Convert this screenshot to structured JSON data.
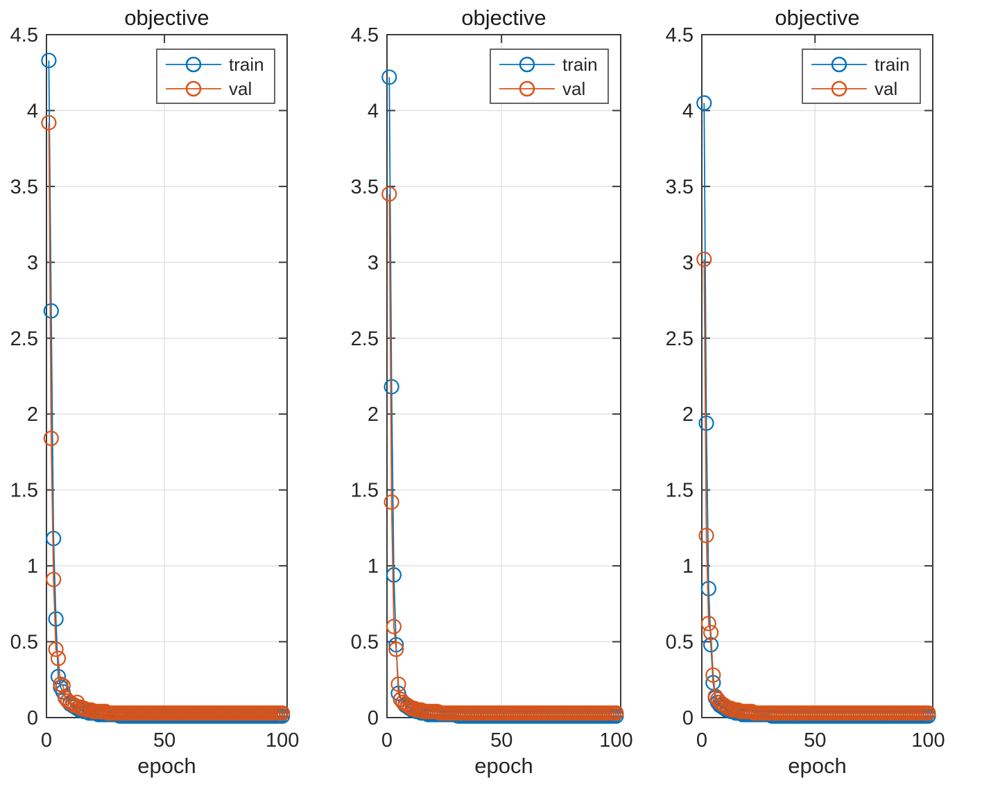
{
  "figure": {
    "background": "#ffffff",
    "subplot_count": 3
  },
  "style": {
    "axis_color": "#3a3a3a",
    "grid_color": "#e2e2e2",
    "tick_label_color": "#262626",
    "title_color": "#1a1a1a",
    "legend_border_color": "#3f3f3f",
    "legend_background": "#ffffff",
    "train_color": "#0072BD",
    "val_color": "#D95319"
  },
  "chart_data": [
    {
      "type": "line",
      "title": "objective",
      "xlabel": "epoch",
      "ylabel": "",
      "xlim": [
        0,
        102
      ],
      "ylim": [
        0,
        4.5
      ],
      "x_ticks": [
        0,
        50,
        100
      ],
      "y_ticks": [
        0,
        0.5,
        1,
        1.5,
        2,
        2.5,
        3,
        3.5,
        4,
        4.5
      ],
      "grid": true,
      "legend": {
        "position": "northeast",
        "entries": [
          "train",
          "val"
        ]
      },
      "x_start": 1,
      "series": [
        {
          "name": "train",
          "color": "#0072BD",
          "values": [
            4.33,
            2.68,
            1.18,
            0.65,
            0.27,
            0.2,
            0.17,
            0.13,
            0.11,
            0.09,
            0.08,
            0.07,
            0.06,
            0.05,
            0.05,
            0.04,
            0.04,
            0.03,
            0.03,
            0.03,
            0.03,
            0.02,
            0.02,
            0.02,
            0.02,
            0.02,
            0.02,
            0.02,
            0.02,
            0.02,
            0.01,
            0.01,
            0.01,
            0.01,
            0.01,
            0.01,
            0.01,
            0.01,
            0.01,
            0.01,
            0.01,
            0.01,
            0.01,
            0.01,
            0.01,
            0.01,
            0.01,
            0.01,
            0.01,
            0.01,
            0.01,
            0.01,
            0.01,
            0.01,
            0.01,
            0.01,
            0.01,
            0.01,
            0.01,
            0.01,
            0.01,
            0.01,
            0.01,
            0.01,
            0.01,
            0.01,
            0.01,
            0.01,
            0.01,
            0.01,
            0.01,
            0.01,
            0.01,
            0.01,
            0.01,
            0.01,
            0.01,
            0.01,
            0.01,
            0.01,
            0.01,
            0.01,
            0.01,
            0.01,
            0.01,
            0.01,
            0.01,
            0.01,
            0.01,
            0.01,
            0.01,
            0.01,
            0.01,
            0.01,
            0.01,
            0.01,
            0.01,
            0.01,
            0.01,
            0.01
          ]
        },
        {
          "name": "val",
          "color": "#D95319",
          "values": [
            3.92,
            1.84,
            0.91,
            0.45,
            0.39,
            0.22,
            0.21,
            0.13,
            0.11,
            0.1,
            0.09,
            0.08,
            0.1,
            0.07,
            0.06,
            0.06,
            0.05,
            0.05,
            0.05,
            0.04,
            0.04,
            0.04,
            0.04,
            0.04,
            0.04,
            0.03,
            0.03,
            0.03,
            0.03,
            0.03,
            0.03,
            0.03,
            0.03,
            0.03,
            0.03,
            0.03,
            0.03,
            0.03,
            0.03,
            0.03,
            0.03,
            0.03,
            0.03,
            0.03,
            0.03,
            0.03,
            0.03,
            0.03,
            0.03,
            0.03,
            0.03,
            0.03,
            0.03,
            0.03,
            0.03,
            0.03,
            0.03,
            0.03,
            0.03,
            0.03,
            0.03,
            0.03,
            0.03,
            0.03,
            0.03,
            0.03,
            0.03,
            0.03,
            0.03,
            0.03,
            0.03,
            0.03,
            0.03,
            0.03,
            0.03,
            0.03,
            0.03,
            0.03,
            0.03,
            0.03,
            0.03,
            0.03,
            0.03,
            0.03,
            0.03,
            0.03,
            0.03,
            0.03,
            0.03,
            0.03,
            0.03,
            0.03,
            0.03,
            0.03,
            0.03,
            0.03,
            0.03,
            0.03,
            0.03,
            0.03
          ]
        }
      ]
    },
    {
      "type": "line",
      "title": "objective",
      "xlabel": "epoch",
      "ylabel": "",
      "xlim": [
        0,
        102
      ],
      "ylim": [
        0,
        4.5
      ],
      "x_ticks": [
        0,
        50,
        100
      ],
      "y_ticks": [
        0,
        0.5,
        1,
        1.5,
        2,
        2.5,
        3,
        3.5,
        4,
        4.5
      ],
      "grid": true,
      "legend": {
        "position": "northeast",
        "entries": [
          "train",
          "val"
        ]
      },
      "x_start": 1,
      "series": [
        {
          "name": "train",
          "color": "#0072BD",
          "values": [
            4.22,
            2.18,
            0.94,
            0.48,
            0.16,
            0.12,
            0.1,
            0.08,
            0.07,
            0.06,
            0.05,
            0.05,
            0.04,
            0.04,
            0.03,
            0.03,
            0.03,
            0.02,
            0.02,
            0.02,
            0.02,
            0.02,
            0.02,
            0.02,
            0.02,
            0.02,
            0.02,
            0.02,
            0.02,
            0.02,
            0.01,
            0.01,
            0.01,
            0.01,
            0.01,
            0.01,
            0.01,
            0.01,
            0.01,
            0.01,
            0.01,
            0.01,
            0.01,
            0.01,
            0.01,
            0.01,
            0.01,
            0.01,
            0.01,
            0.01,
            0.01,
            0.01,
            0.01,
            0.01,
            0.01,
            0.01,
            0.01,
            0.01,
            0.01,
            0.01,
            0.01,
            0.01,
            0.01,
            0.01,
            0.01,
            0.01,
            0.01,
            0.01,
            0.01,
            0.01,
            0.01,
            0.01,
            0.01,
            0.01,
            0.01,
            0.01,
            0.01,
            0.01,
            0.01,
            0.01,
            0.01,
            0.01,
            0.01,
            0.01,
            0.01,
            0.01,
            0.01,
            0.01,
            0.01,
            0.01,
            0.01,
            0.01,
            0.01,
            0.01,
            0.01,
            0.01,
            0.01,
            0.01,
            0.01,
            0.01
          ]
        },
        {
          "name": "val",
          "color": "#D95319",
          "values": [
            3.45,
            1.42,
            0.6,
            0.45,
            0.22,
            0.12,
            0.1,
            0.09,
            0.08,
            0.07,
            0.06,
            0.06,
            0.05,
            0.05,
            0.05,
            0.04,
            0.04,
            0.04,
            0.04,
            0.04,
            0.04,
            0.04,
            0.03,
            0.03,
            0.03,
            0.03,
            0.03,
            0.03,
            0.03,
            0.03,
            0.03,
            0.03,
            0.03,
            0.03,
            0.03,
            0.03,
            0.03,
            0.03,
            0.03,
            0.03,
            0.03,
            0.03,
            0.03,
            0.03,
            0.03,
            0.03,
            0.03,
            0.03,
            0.03,
            0.03,
            0.03,
            0.03,
            0.03,
            0.03,
            0.03,
            0.03,
            0.03,
            0.03,
            0.03,
            0.03,
            0.03,
            0.03,
            0.03,
            0.03,
            0.03,
            0.03,
            0.03,
            0.03,
            0.03,
            0.03,
            0.03,
            0.03,
            0.03,
            0.03,
            0.03,
            0.03,
            0.03,
            0.03,
            0.03,
            0.03,
            0.03,
            0.03,
            0.03,
            0.03,
            0.03,
            0.03,
            0.03,
            0.03,
            0.03,
            0.03,
            0.03,
            0.03,
            0.03,
            0.03,
            0.03,
            0.03,
            0.03,
            0.03,
            0.03,
            0.03
          ]
        }
      ]
    },
    {
      "type": "line",
      "title": "objective",
      "xlabel": "epoch",
      "ylabel": "",
      "xlim": [
        0,
        102
      ],
      "ylim": [
        0,
        4.5
      ],
      "x_ticks": [
        0,
        50,
        100
      ],
      "y_ticks": [
        0,
        0.5,
        1,
        1.5,
        2,
        2.5,
        3,
        3.5,
        4,
        4.5
      ],
      "grid": true,
      "legend": {
        "position": "northeast",
        "entries": [
          "train",
          "val"
        ]
      },
      "x_start": 1,
      "series": [
        {
          "name": "train",
          "color": "#0072BD",
          "values": [
            4.05,
            1.94,
            0.85,
            0.48,
            0.23,
            0.13,
            0.1,
            0.08,
            0.07,
            0.06,
            0.05,
            0.05,
            0.04,
            0.04,
            0.03,
            0.03,
            0.03,
            0.02,
            0.02,
            0.02,
            0.02,
            0.02,
            0.02,
            0.02,
            0.02,
            0.02,
            0.02,
            0.02,
            0.02,
            0.02,
            0.01,
            0.01,
            0.01,
            0.01,
            0.01,
            0.01,
            0.01,
            0.01,
            0.01,
            0.01,
            0.01,
            0.01,
            0.01,
            0.01,
            0.01,
            0.01,
            0.01,
            0.01,
            0.01,
            0.01,
            0.01,
            0.01,
            0.01,
            0.01,
            0.01,
            0.01,
            0.01,
            0.01,
            0.01,
            0.01,
            0.01,
            0.01,
            0.01,
            0.01,
            0.01,
            0.01,
            0.01,
            0.01,
            0.01,
            0.01,
            0.01,
            0.01,
            0.01,
            0.01,
            0.01,
            0.01,
            0.01,
            0.01,
            0.01,
            0.01,
            0.01,
            0.01,
            0.01,
            0.01,
            0.01,
            0.01,
            0.01,
            0.01,
            0.01,
            0.01,
            0.01,
            0.01,
            0.01,
            0.01,
            0.01,
            0.01,
            0.01,
            0.01,
            0.01,
            0.01
          ]
        },
        {
          "name": "val",
          "color": "#D95319",
          "values": [
            3.02,
            1.2,
            0.62,
            0.56,
            0.28,
            0.14,
            0.12,
            0.1,
            0.09,
            0.08,
            0.07,
            0.06,
            0.06,
            0.05,
            0.05,
            0.05,
            0.04,
            0.04,
            0.04,
            0.04,
            0.04,
            0.04,
            0.03,
            0.03,
            0.03,
            0.03,
            0.03,
            0.03,
            0.03,
            0.03,
            0.03,
            0.03,
            0.03,
            0.03,
            0.03,
            0.03,
            0.03,
            0.03,
            0.03,
            0.03,
            0.03,
            0.03,
            0.03,
            0.03,
            0.03,
            0.03,
            0.03,
            0.03,
            0.03,
            0.03,
            0.03,
            0.03,
            0.03,
            0.03,
            0.03,
            0.03,
            0.03,
            0.03,
            0.03,
            0.03,
            0.03,
            0.03,
            0.03,
            0.03,
            0.03,
            0.03,
            0.03,
            0.03,
            0.03,
            0.03,
            0.03,
            0.03,
            0.03,
            0.03,
            0.03,
            0.03,
            0.03,
            0.03,
            0.03,
            0.03,
            0.03,
            0.03,
            0.03,
            0.03,
            0.03,
            0.03,
            0.03,
            0.03,
            0.03,
            0.03,
            0.03,
            0.03,
            0.03,
            0.03,
            0.03,
            0.03,
            0.03,
            0.03,
            0.03,
            0.03
          ]
        }
      ]
    }
  ]
}
